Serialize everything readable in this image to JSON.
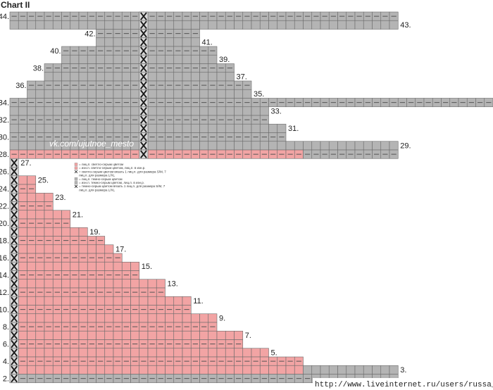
{
  "title": "Chart II",
  "watermark": "vk.com/ujutnoe_mesto",
  "source_url": "http://www.liveinternet.ru/users/russa_n/",
  "colors": {
    "gray": "#b4b4b4",
    "pink": "#f2a4a4",
    "grid": "#6b6b6b",
    "dash": "#555555",
    "marker": "#1a1a1a"
  },
  "legend": [
    {
      "color": "pink",
      "text": "= лиц.п. светло-серым цветом"
    },
    {
      "color": "pink",
      "text": "= изн.п. светло-серым цветом, лиц.п. в изн.р."
    },
    {
      "color": "cross",
      "text": "= светло-серым цветом вязать 1 лиц.п. для размера S/M, 7"
    },
    {
      "color": "none",
      "text": "лиц.п. для размера L/XL"
    },
    {
      "color": "gray",
      "text": "= лиц.п. темно-серым цветом"
    },
    {
      "color": "gray",
      "text": "= изн.п. темно-серым цветом, лиц.п. в изн.р."
    },
    {
      "color": "cross",
      "text": "= темно-серым цветом вязать 1 лиц.п. для размера S/M, 7"
    },
    {
      "color": "none",
      "text": "лиц.п. для размера L/XL"
    }
  ],
  "rows": [
    {
      "label": "44.",
      "side": "left",
      "color": "gray",
      "start": 0,
      "end": 45,
      "purl": true
    },
    {
      "label": "43.",
      "side": "right",
      "color": "gray",
      "start": 0,
      "end": 45,
      "purl": false
    },
    {
      "label": "42.",
      "side": "left",
      "color": "gray",
      "start": 10,
      "end": 22,
      "purl": true
    },
    {
      "label": "41.",
      "side": "right",
      "color": "gray",
      "start": 10,
      "end": 22,
      "purl": false
    },
    {
      "label": "40.",
      "side": "left",
      "color": "gray",
      "start": 6,
      "end": 24,
      "purl": true
    },
    {
      "label": "39.",
      "side": "right",
      "color": "gray",
      "start": 6,
      "end": 24,
      "purl": false
    },
    {
      "label": "38.",
      "side": "left",
      "color": "gray",
      "start": 4,
      "end": 26,
      "purl": true
    },
    {
      "label": "37.",
      "side": "right",
      "color": "gray",
      "start": 4,
      "end": 26,
      "purl": false
    },
    {
      "label": "36.",
      "side": "left",
      "color": "gray",
      "start": 2,
      "end": 28,
      "purl": true
    },
    {
      "label": "35.",
      "side": "right",
      "color": "gray",
      "start": 2,
      "end": 28,
      "purl": false
    },
    {
      "label": "34.",
      "side": "left",
      "color": "gray",
      "start": 0,
      "end": 56,
      "purl": true
    },
    {
      "label": "33.",
      "side": "right",
      "color": "gray",
      "start": 0,
      "end": 30,
      "purl": false
    },
    {
      "label": "32.",
      "side": "left",
      "color": "gray",
      "start": 0,
      "end": 30,
      "purl": true
    },
    {
      "label": "31.",
      "side": "right",
      "color": "gray",
      "start": 0,
      "end": 32,
      "purl": false
    },
    {
      "label": "30.",
      "side": "left",
      "color": "gray",
      "start": 0,
      "end": 32,
      "purl": true
    },
    {
      "label": "29.",
      "side": "right",
      "color": "gray",
      "start": 0,
      "end": 45,
      "purl": false
    },
    {
      "label": "28.",
      "side": "left",
      "color": "pink",
      "start": 0,
      "end": 34,
      "purl": true,
      "tail_color": "gray",
      "tail_end": 45
    },
    {
      "label": "27.",
      "side": "right",
      "color": "none",
      "start": 0,
      "end": 0,
      "purl": false
    },
    {
      "label": "26.",
      "side": "left",
      "color": "pink",
      "start": 0,
      "end": 1,
      "purl": true
    },
    {
      "label": "25.",
      "side": "right",
      "color": "pink",
      "start": 0,
      "end": 3,
      "purl": false
    },
    {
      "label": "24.",
      "side": "left",
      "color": "pink",
      "start": 0,
      "end": 3,
      "purl": true
    },
    {
      "label": "23.",
      "side": "right",
      "color": "pink",
      "start": 0,
      "end": 5,
      "purl": false
    },
    {
      "label": "22.",
      "side": "left",
      "color": "pink",
      "start": 0,
      "end": 5,
      "purl": true
    },
    {
      "label": "21.",
      "side": "right",
      "color": "pink",
      "start": 0,
      "end": 7,
      "purl": false
    },
    {
      "label": "20.",
      "side": "left",
      "color": "pink",
      "start": 0,
      "end": 7,
      "purl": true
    },
    {
      "label": "19.",
      "side": "right",
      "color": "pink",
      "start": 0,
      "end": 9,
      "purl": false
    },
    {
      "label": "18.",
      "side": "left",
      "color": "pink",
      "start": 0,
      "end": 11,
      "purl": true
    },
    {
      "label": "17.",
      "side": "right",
      "color": "pink",
      "start": 0,
      "end": 12,
      "purl": false
    },
    {
      "label": "16.",
      "side": "left",
      "color": "pink",
      "start": 0,
      "end": 13,
      "purl": true
    },
    {
      "label": "15.",
      "side": "right",
      "color": "pink",
      "start": 0,
      "end": 15,
      "purl": false
    },
    {
      "label": "14.",
      "side": "left",
      "color": "pink",
      "start": 0,
      "end": 15,
      "purl": true
    },
    {
      "label": "13.",
      "side": "right",
      "color": "pink",
      "start": 0,
      "end": 18,
      "purl": false
    },
    {
      "label": "12.",
      "side": "left",
      "color": "pink",
      "start": 0,
      "end": 18,
      "purl": true
    },
    {
      "label": "11.",
      "side": "right",
      "color": "pink",
      "start": 0,
      "end": 21,
      "purl": false
    },
    {
      "label": "10.",
      "side": "left",
      "color": "pink",
      "start": 0,
      "end": 21,
      "purl": true
    },
    {
      "label": "9.",
      "side": "right",
      "color": "pink",
      "start": 0,
      "end": 24,
      "purl": false
    },
    {
      "label": "8.",
      "side": "left",
      "color": "pink",
      "start": 0,
      "end": 24,
      "purl": true
    },
    {
      "label": "7.",
      "side": "right",
      "color": "pink",
      "start": 0,
      "end": 27,
      "purl": false
    },
    {
      "label": "6.",
      "side": "left",
      "color": "pink",
      "start": 0,
      "end": 27,
      "purl": true
    },
    {
      "label": "5.",
      "side": "right",
      "color": "pink",
      "start": 0,
      "end": 30,
      "purl": false
    },
    {
      "label": "4.",
      "side": "left",
      "color": "pink",
      "start": 0,
      "end": 30,
      "purl": true,
      "tail_color": "pink",
      "tail_end": 34
    },
    {
      "label": "3.",
      "side": "right",
      "color": "pink",
      "start": 0,
      "end": 34,
      "purl": false,
      "tail_color": "gray",
      "tail_end": 45
    },
    {
      "label": "2.",
      "side": "left",
      "color": "gray",
      "start": 0,
      "end": 45,
      "purl": true
    }
  ],
  "markers": {
    "upper_column": 15,
    "upper_rows": "44-28",
    "lower_column": 0,
    "lower_rows": "27-2"
  }
}
